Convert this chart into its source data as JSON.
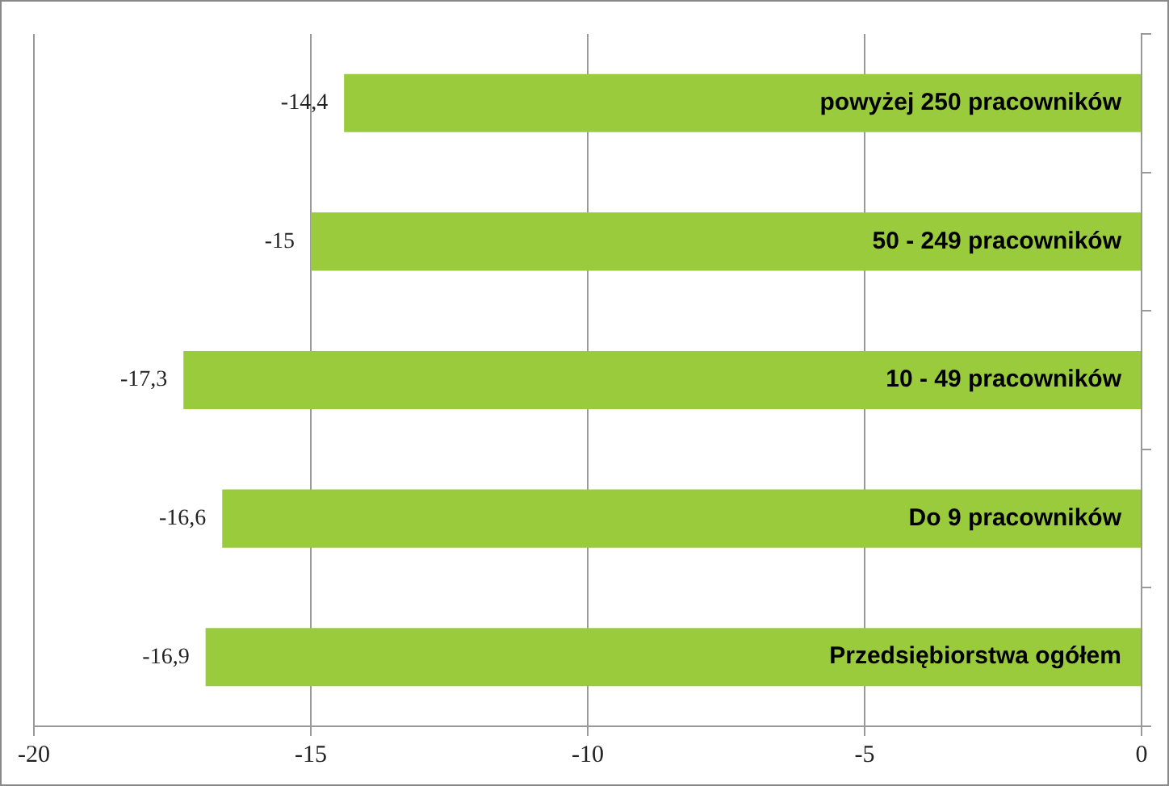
{
  "chart_data": {
    "type": "bar",
    "orientation": "horizontal",
    "categories": [
      "powyżej 250 pracowników",
      "50 - 249 pracowników",
      "10 - 49 pracowników",
      "Do 9 pracowników",
      "Przedsiębiorstwa ogółem"
    ],
    "values": [
      -14.4,
      -15,
      -17.3,
      -16.6,
      -16.9
    ],
    "value_labels": [
      "-14,4",
      "-15",
      "-17,3",
      "-16,6",
      "-16,9"
    ],
    "color": "#9acb3c",
    "xlim": [
      -20,
      0
    ],
    "xticks": [
      -20,
      -15,
      -10,
      -5,
      0
    ],
    "grid": "x",
    "legend": false
  }
}
